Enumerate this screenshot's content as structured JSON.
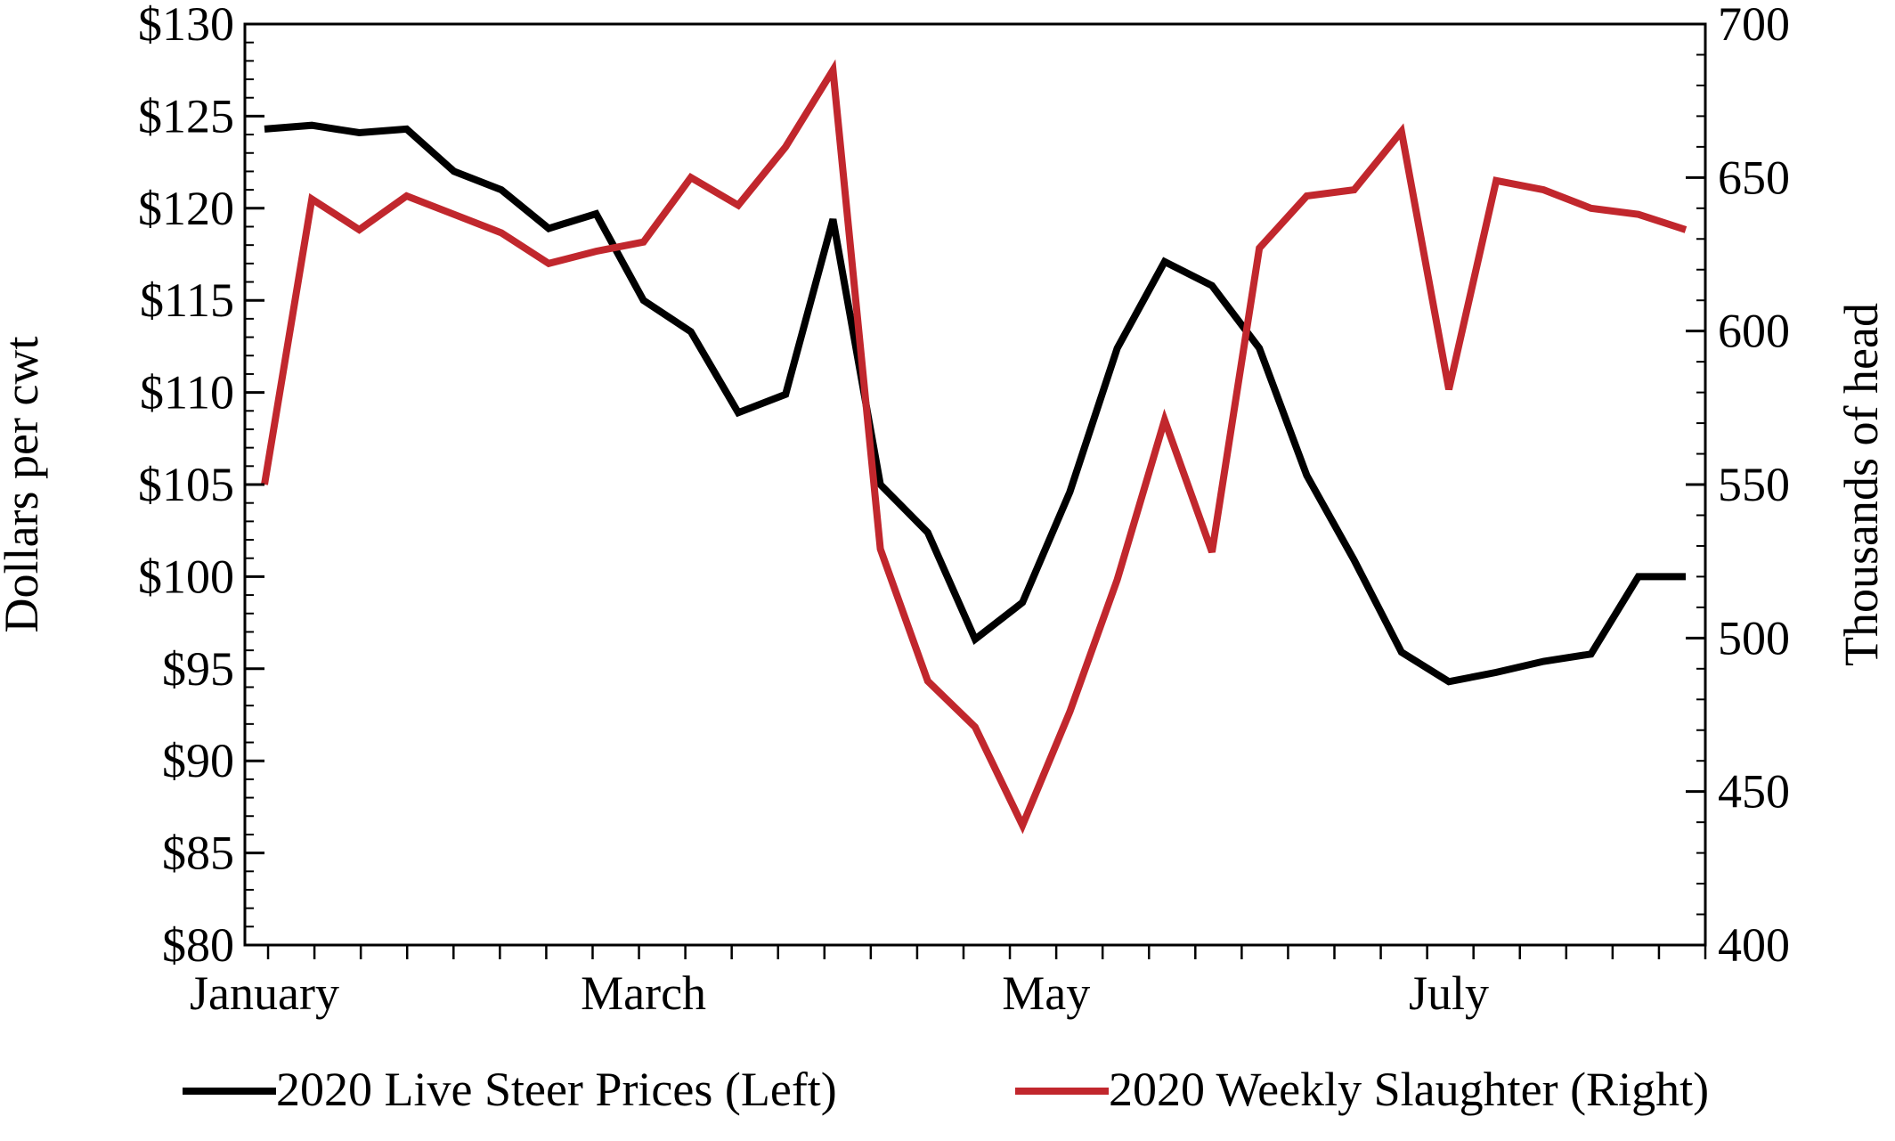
{
  "chart_data": {
    "type": "line",
    "title": "",
    "xlabel": "",
    "x_tick_labels": [
      {
        "label": "January",
        "week": 0
      },
      {
        "label": "March",
        "week": 8
      },
      {
        "label": "May",
        "week": 16.5
      },
      {
        "label": "July",
        "week": 25
      }
    ],
    "weeks": 31,
    "left_axis": {
      "label": "Dollars per cwt",
      "ylim": [
        80,
        130
      ],
      "ticks": [
        80,
        85,
        90,
        95,
        100,
        105,
        110,
        115,
        120,
        125,
        130
      ],
      "tick_labels": [
        "$80",
        "$85",
        "$90",
        "$95",
        "$100",
        "$105",
        "$110",
        "$115",
        "$120",
        "$125",
        "$130"
      ]
    },
    "right_axis": {
      "label": "Thousands of head",
      "ylim": [
        400,
        700
      ],
      "ticks": [
        400,
        450,
        500,
        550,
        600,
        650,
        700
      ],
      "tick_labels": [
        "400",
        "450",
        "500",
        "550",
        "600",
        "650",
        "700"
      ]
    },
    "series": [
      {
        "name": "2020 Live Steer Prices (Left)",
        "axis": "left",
        "color": "#000000",
        "values": [
          124.3,
          124.5,
          124.1,
          124.3,
          122.0,
          121.0,
          118.9,
          119.7,
          115.0,
          113.3,
          108.9,
          109.9,
          119.4,
          105.0,
          102.4,
          96.6,
          98.6,
          104.6,
          112.4,
          117.1,
          115.8,
          112.4,
          105.5,
          100.9,
          95.9,
          94.3,
          94.8,
          95.4,
          95.8,
          100.0,
          100.0
        ]
      },
      {
        "name": "2020 Weekly Slaughter (Right)",
        "axis": "right",
        "color": "#c1272d",
        "values": [
          550,
          643,
          633,
          644,
          638,
          632,
          622,
          626,
          629,
          650,
          641,
          660,
          685,
          529,
          486,
          471,
          439,
          476,
          519,
          571,
          528,
          627,
          644,
          646,
          665,
          581,
          649,
          646,
          640,
          638,
          633
        ]
      }
    ],
    "legend_position": "bottom"
  }
}
